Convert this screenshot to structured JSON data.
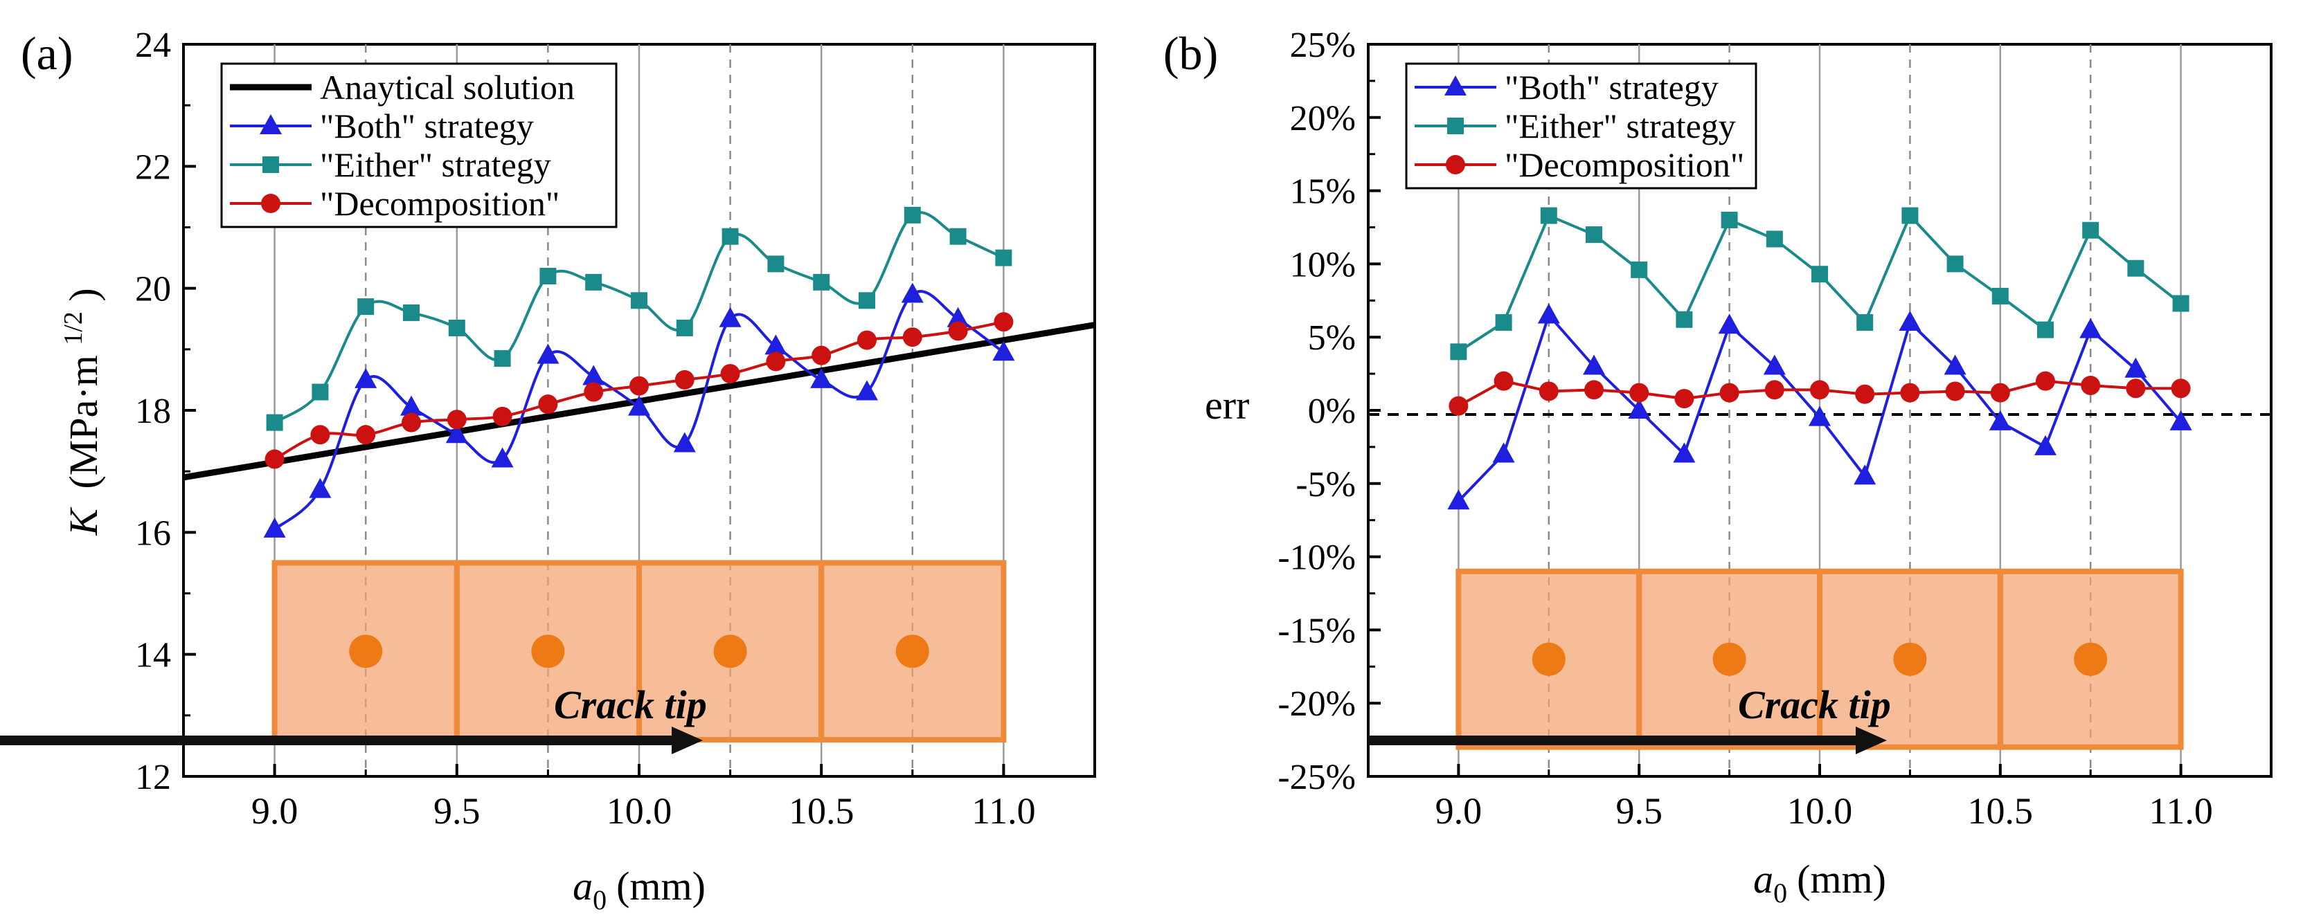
{
  "chart_data": [
    {
      "panel_label": "(a)",
      "type": "line",
      "xlabel": "a",
      "xlabel_sub": "0",
      "xlabel_unit": "(mm)",
      "ylabel": "K",
      "ylabel_unit": "(MPa·m",
      "ylabel_sup": "1/2",
      "ylabel_close": ")",
      "xlim": [
        8.75,
        11.25
      ],
      "ylim": [
        12,
        24
      ],
      "xticks": [
        9.0,
        9.5,
        10.0,
        10.5,
        11.0
      ],
      "xtick_labels": [
        "9.0",
        "9.5",
        "10.0",
        "10.5",
        "11.0"
      ],
      "yticks": [
        12,
        14,
        16,
        18,
        20,
        22,
        24
      ],
      "ytick_labels": [
        "12",
        "14",
        "16",
        "18",
        "20",
        "22",
        "24"
      ],
      "legend": [
        "Anaytical solution",
        "\"Both\" strategy",
        "\"Either\" strategy",
        "\"Decomposition\""
      ],
      "analytical_line": {
        "name": "Anaytical solution",
        "x": [
          8.75,
          11.25
        ],
        "y": [
          16.9,
          19.4
        ]
      },
      "x": [
        9.0,
        9.125,
        9.25,
        9.375,
        9.5,
        9.625,
        9.75,
        9.875,
        10.0,
        10.125,
        10.25,
        10.375,
        10.5,
        10.625,
        10.75,
        10.875,
        11.0
      ],
      "series": [
        {
          "name": "\"Both\" strategy",
          "marker": "triangle",
          "color": "#1f1fe0",
          "values": [
            16.05,
            16.7,
            18.5,
            18.05,
            17.6,
            17.2,
            18.9,
            18.55,
            18.05,
            17.45,
            19.5,
            19.05,
            18.5,
            18.3,
            19.9,
            19.5,
            18.95
          ]
        },
        {
          "name": "\"Either\" strategy",
          "marker": "square",
          "color": "#1a8a8a",
          "values": [
            17.8,
            18.3,
            19.7,
            19.6,
            19.35,
            18.85,
            20.2,
            20.1,
            19.8,
            19.35,
            20.85,
            20.4,
            20.1,
            19.8,
            21.2,
            20.85,
            20.5
          ]
        },
        {
          "name": "\"Decomposition\"",
          "marker": "circle",
          "color": "#cc1111",
          "values": [
            17.2,
            17.6,
            17.6,
            17.8,
            17.85,
            17.9,
            18.1,
            18.3,
            18.4,
            18.5,
            18.6,
            18.8,
            18.9,
            19.15,
            19.2,
            19.3,
            19.45
          ]
        }
      ],
      "annotation": "Crack tip",
      "elements": {
        "x_edges": [
          9.0,
          9.5,
          10.0,
          10.5,
          11.0
        ],
        "node_x": [
          9.25,
          9.75,
          10.25,
          10.75
        ],
        "y_range": [
          12.6,
          15.5
        ],
        "node_y": 14.05
      }
    },
    {
      "panel_label": "(b)",
      "type": "line",
      "xlabel": "a",
      "xlabel_sub": "0",
      "xlabel_unit": "(mm)",
      "ylabel": "err",
      "xlim": [
        8.75,
        11.25
      ],
      "ylim": [
        -25,
        25
      ],
      "xticks": [
        9.0,
        9.5,
        10.0,
        10.5,
        11.0
      ],
      "xtick_labels": [
        "9.0",
        "9.5",
        "10.0",
        "10.5",
        "11.0"
      ],
      "yticks": [
        -25,
        -20,
        -15,
        -10,
        -5,
        0,
        5,
        10,
        15,
        20,
        25
      ],
      "ytick_labels": [
        "-25%",
        "-20%",
        "-15%",
        "-10%",
        "-5%",
        "0%",
        "5%",
        "10%",
        "15%",
        "20%",
        "25%"
      ],
      "legend": [
        "\"Both\" strategy",
        "\"Either\" strategy",
        "\"Decomposition\""
      ],
      "reference_line": 0,
      "x": [
        9.0,
        9.125,
        9.25,
        9.375,
        9.5,
        9.625,
        9.75,
        9.875,
        10.0,
        10.125,
        10.25,
        10.375,
        10.5,
        10.625,
        10.75,
        10.875,
        11.0
      ],
      "series": [
        {
          "name": "\"Both\" strategy",
          "marker": "triangle",
          "color": "#1f1fe0",
          "values": [
            -6.2,
            -3.0,
            6.5,
            3.0,
            0.0,
            -3.0,
            5.8,
            3.0,
            -0.5,
            -4.5,
            6.0,
            3.0,
            -0.8,
            -2.5,
            5.5,
            2.8,
            -0.8
          ]
        },
        {
          "name": "\"Either\" strategy",
          "marker": "square",
          "color": "#1a8a8a",
          "values": [
            4.0,
            6.0,
            13.3,
            12.0,
            9.6,
            6.2,
            13.0,
            11.7,
            9.3,
            6.0,
            13.3,
            10.0,
            7.8,
            5.5,
            12.3,
            9.7,
            7.3
          ]
        },
        {
          "name": "\"Decomposition\"",
          "marker": "circle",
          "color": "#cc1111",
          "values": [
            0.3,
            2.0,
            1.3,
            1.4,
            1.2,
            0.8,
            1.2,
            1.4,
            1.4,
            1.1,
            1.2,
            1.3,
            1.2,
            2.0,
            1.7,
            1.5,
            1.5
          ]
        }
      ],
      "annotation": "Crack tip",
      "elements": {
        "x_edges": [
          9.0,
          9.5,
          10.0,
          10.5,
          11.0
        ],
        "node_x": [
          9.25,
          9.75,
          10.25,
          10.75
        ],
        "y_range": [
          -23.0,
          -11.0
        ],
        "node_y": -17.0
      }
    }
  ]
}
